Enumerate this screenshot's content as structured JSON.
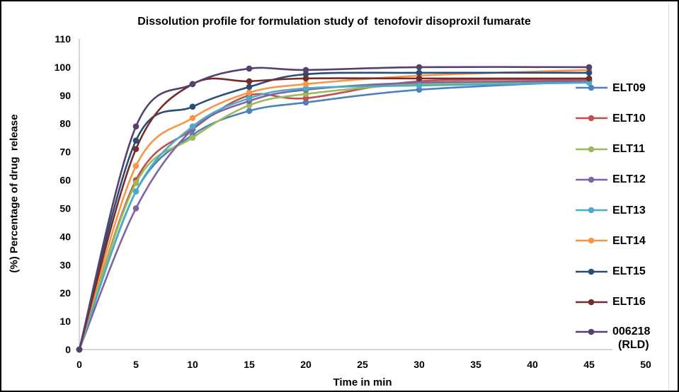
{
  "window": {
    "background": "#ffffff",
    "border_color": "#000000",
    "text_color": "#000000",
    "axis_color": "#bfbfbf"
  },
  "chart_data": {
    "type": "line",
    "title": "Dissolution profile for formulation study of  tenofovir disoproxil fumarate",
    "xlabel": "Time in min",
    "ylabel": "(%) Percentage of drug  release",
    "x": [
      0,
      5,
      10,
      15,
      20,
      30,
      45
    ],
    "xlim": [
      0,
      50
    ],
    "ylim": [
      0,
      110
    ],
    "x_ticks": [
      0,
      5,
      10,
      15,
      20,
      25,
      30,
      35,
      40,
      45,
      50
    ],
    "y_ticks": [
      0,
      10,
      20,
      30,
      40,
      50,
      60,
      70,
      80,
      90,
      100,
      110
    ],
    "grid": false,
    "line_style": "smooth",
    "marker": "circle",
    "legend_position": "right-outside",
    "series": [
      {
        "name": "ELT09",
        "color": "#4f81bd",
        "values": [
          0,
          56,
          76,
          84.5,
          87.5,
          92,
          95
        ]
      },
      {
        "name": "ELT10",
        "color": "#c0504d",
        "values": [
          0,
          60,
          78,
          90,
          89,
          95,
          95.5
        ]
      },
      {
        "name": "ELT11",
        "color": "#9bbb59",
        "values": [
          0,
          59,
          75,
          86.5,
          90.5,
          94,
          95
        ]
      },
      {
        "name": "ELT12",
        "color": "#8064a2",
        "values": [
          0,
          50,
          78,
          88,
          92,
          94.5,
          95
        ]
      },
      {
        "name": "ELT13",
        "color": "#4bacc6",
        "values": [
          0,
          56,
          79,
          89,
          92.5,
          93.5,
          94.5
        ]
      },
      {
        "name": "ELT14",
        "color": "#f79646",
        "values": [
          0,
          65,
          82,
          91,
          94,
          97,
          99
        ]
      },
      {
        "name": "ELT15",
        "color": "#2a4d75",
        "values": [
          0,
          74,
          86,
          93,
          97.5,
          98,
          98
        ]
      },
      {
        "name": "ELT16",
        "color": "#772c2a",
        "values": [
          0,
          71,
          94,
          95,
          96,
          96,
          96
        ]
      },
      {
        "name": "006218 (RLD)",
        "legend_lines": [
          "006218",
          "(RLD)"
        ],
        "color": "#554170",
        "values": [
          0,
          79,
          94,
          99.5,
          99,
          100,
          100
        ]
      }
    ]
  }
}
